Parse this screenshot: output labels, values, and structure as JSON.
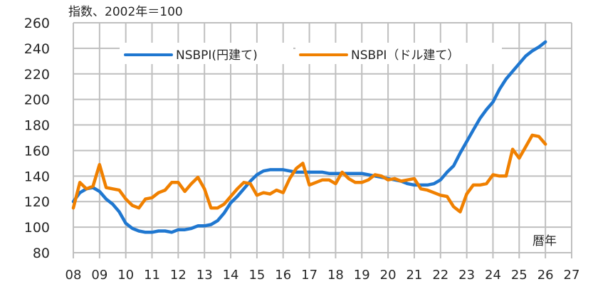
{
  "chart_data": {
    "type": "line",
    "title": "",
    "unit_label": "指数、2002年＝100",
    "xlabel": "暦年",
    "ylabel": "",
    "ylim": [
      80,
      260
    ],
    "yticks": [
      80,
      100,
      120,
      140,
      160,
      180,
      200,
      220,
      240,
      260
    ],
    "xlim": [
      2008,
      2027
    ],
    "xtick_labels": [
      "08",
      "09",
      "10",
      "11",
      "12",
      "13",
      "14",
      "15",
      "16",
      "17",
      "18",
      "19",
      "20",
      "21",
      "22",
      "23",
      "24",
      "25",
      "26",
      "27"
    ],
    "grid": true,
    "legend_position": "top-inside",
    "x_frequency": "quarterly",
    "x": [
      2008.0,
      2008.25,
      2008.5,
      2008.75,
      2009.0,
      2009.25,
      2009.5,
      2009.75,
      2010.0,
      2010.25,
      2010.5,
      2010.75,
      2011.0,
      2011.25,
      2011.5,
      2011.75,
      2012.0,
      2012.25,
      2012.5,
      2012.75,
      2013.0,
      2013.25,
      2013.5,
      2013.75,
      2014.0,
      2014.25,
      2014.5,
      2014.75,
      2015.0,
      2015.25,
      2015.5,
      2015.75,
      2016.0,
      2016.25,
      2016.5,
      2016.75,
      2017.0,
      2017.25,
      2017.5,
      2017.75,
      2018.0,
      2018.25,
      2018.5,
      2018.75,
      2019.0,
      2019.25,
      2019.5,
      2019.75,
      2020.0,
      2020.25,
      2020.5,
      2020.75,
      2021.0,
      2021.25,
      2021.5,
      2021.75,
      2022.0,
      2022.25,
      2022.5,
      2022.75,
      2023.0,
      2023.25,
      2023.5,
      2023.75,
      2024.0,
      2024.25,
      2024.5,
      2024.75,
      2025.0,
      2025.25,
      2025.5,
      2025.75,
      2026.0
    ],
    "series": [
      {
        "name": "NSBPI(円建て)",
        "color": "#1f77d0",
        "values": [
          120,
          127,
          130,
          131,
          128,
          122,
          118,
          112,
          103,
          99,
          97,
          96,
          96,
          97,
          97,
          96,
          98,
          98,
          99,
          101,
          101,
          102,
          105,
          111,
          119,
          124,
          130,
          136,
          141,
          144,
          145,
          145,
          145,
          144,
          143,
          143,
          143,
          143,
          143,
          142,
          142,
          142,
          142,
          142,
          142,
          141,
          140,
          139,
          138,
          137,
          136,
          134,
          133,
          133,
          133,
          134,
          137,
          143,
          148,
          158,
          167,
          176,
          185,
          192,
          198,
          208,
          216,
          222,
          228,
          234,
          238,
          241,
          245
        ]
      },
      {
        "name": "NSBPI（ドル建て）",
        "color": "#f08000",
        "values": [
          115,
          135,
          130,
          132,
          149,
          131,
          130,
          129,
          122,
          117,
          115,
          122,
          123,
          127,
          129,
          135,
          135,
          128,
          134,
          139,
          130,
          115,
          115,
          118,
          124,
          130,
          135,
          134,
          125,
          127,
          126,
          129,
          127,
          138,
          146,
          150,
          133,
          135,
          137,
          137,
          134,
          143,
          138,
          135,
          135,
          137,
          141,
          140,
          137,
          138,
          136,
          137,
          138,
          130,
          129,
          127,
          125,
          124,
          116,
          112,
          126,
          133,
          133,
          134,
          141,
          140,
          140,
          161,
          154,
          163,
          172,
          171,
          165
        ]
      }
    ]
  },
  "legend": {
    "items": [
      {
        "label": "NSBPI(円建て)",
        "color": "#1f77d0"
      },
      {
        "label": "NSBPI（ドル建て）",
        "color": "#f08000"
      }
    ]
  },
  "style": {
    "grid_color": "#bfbfbf",
    "text_color": "#262626"
  }
}
